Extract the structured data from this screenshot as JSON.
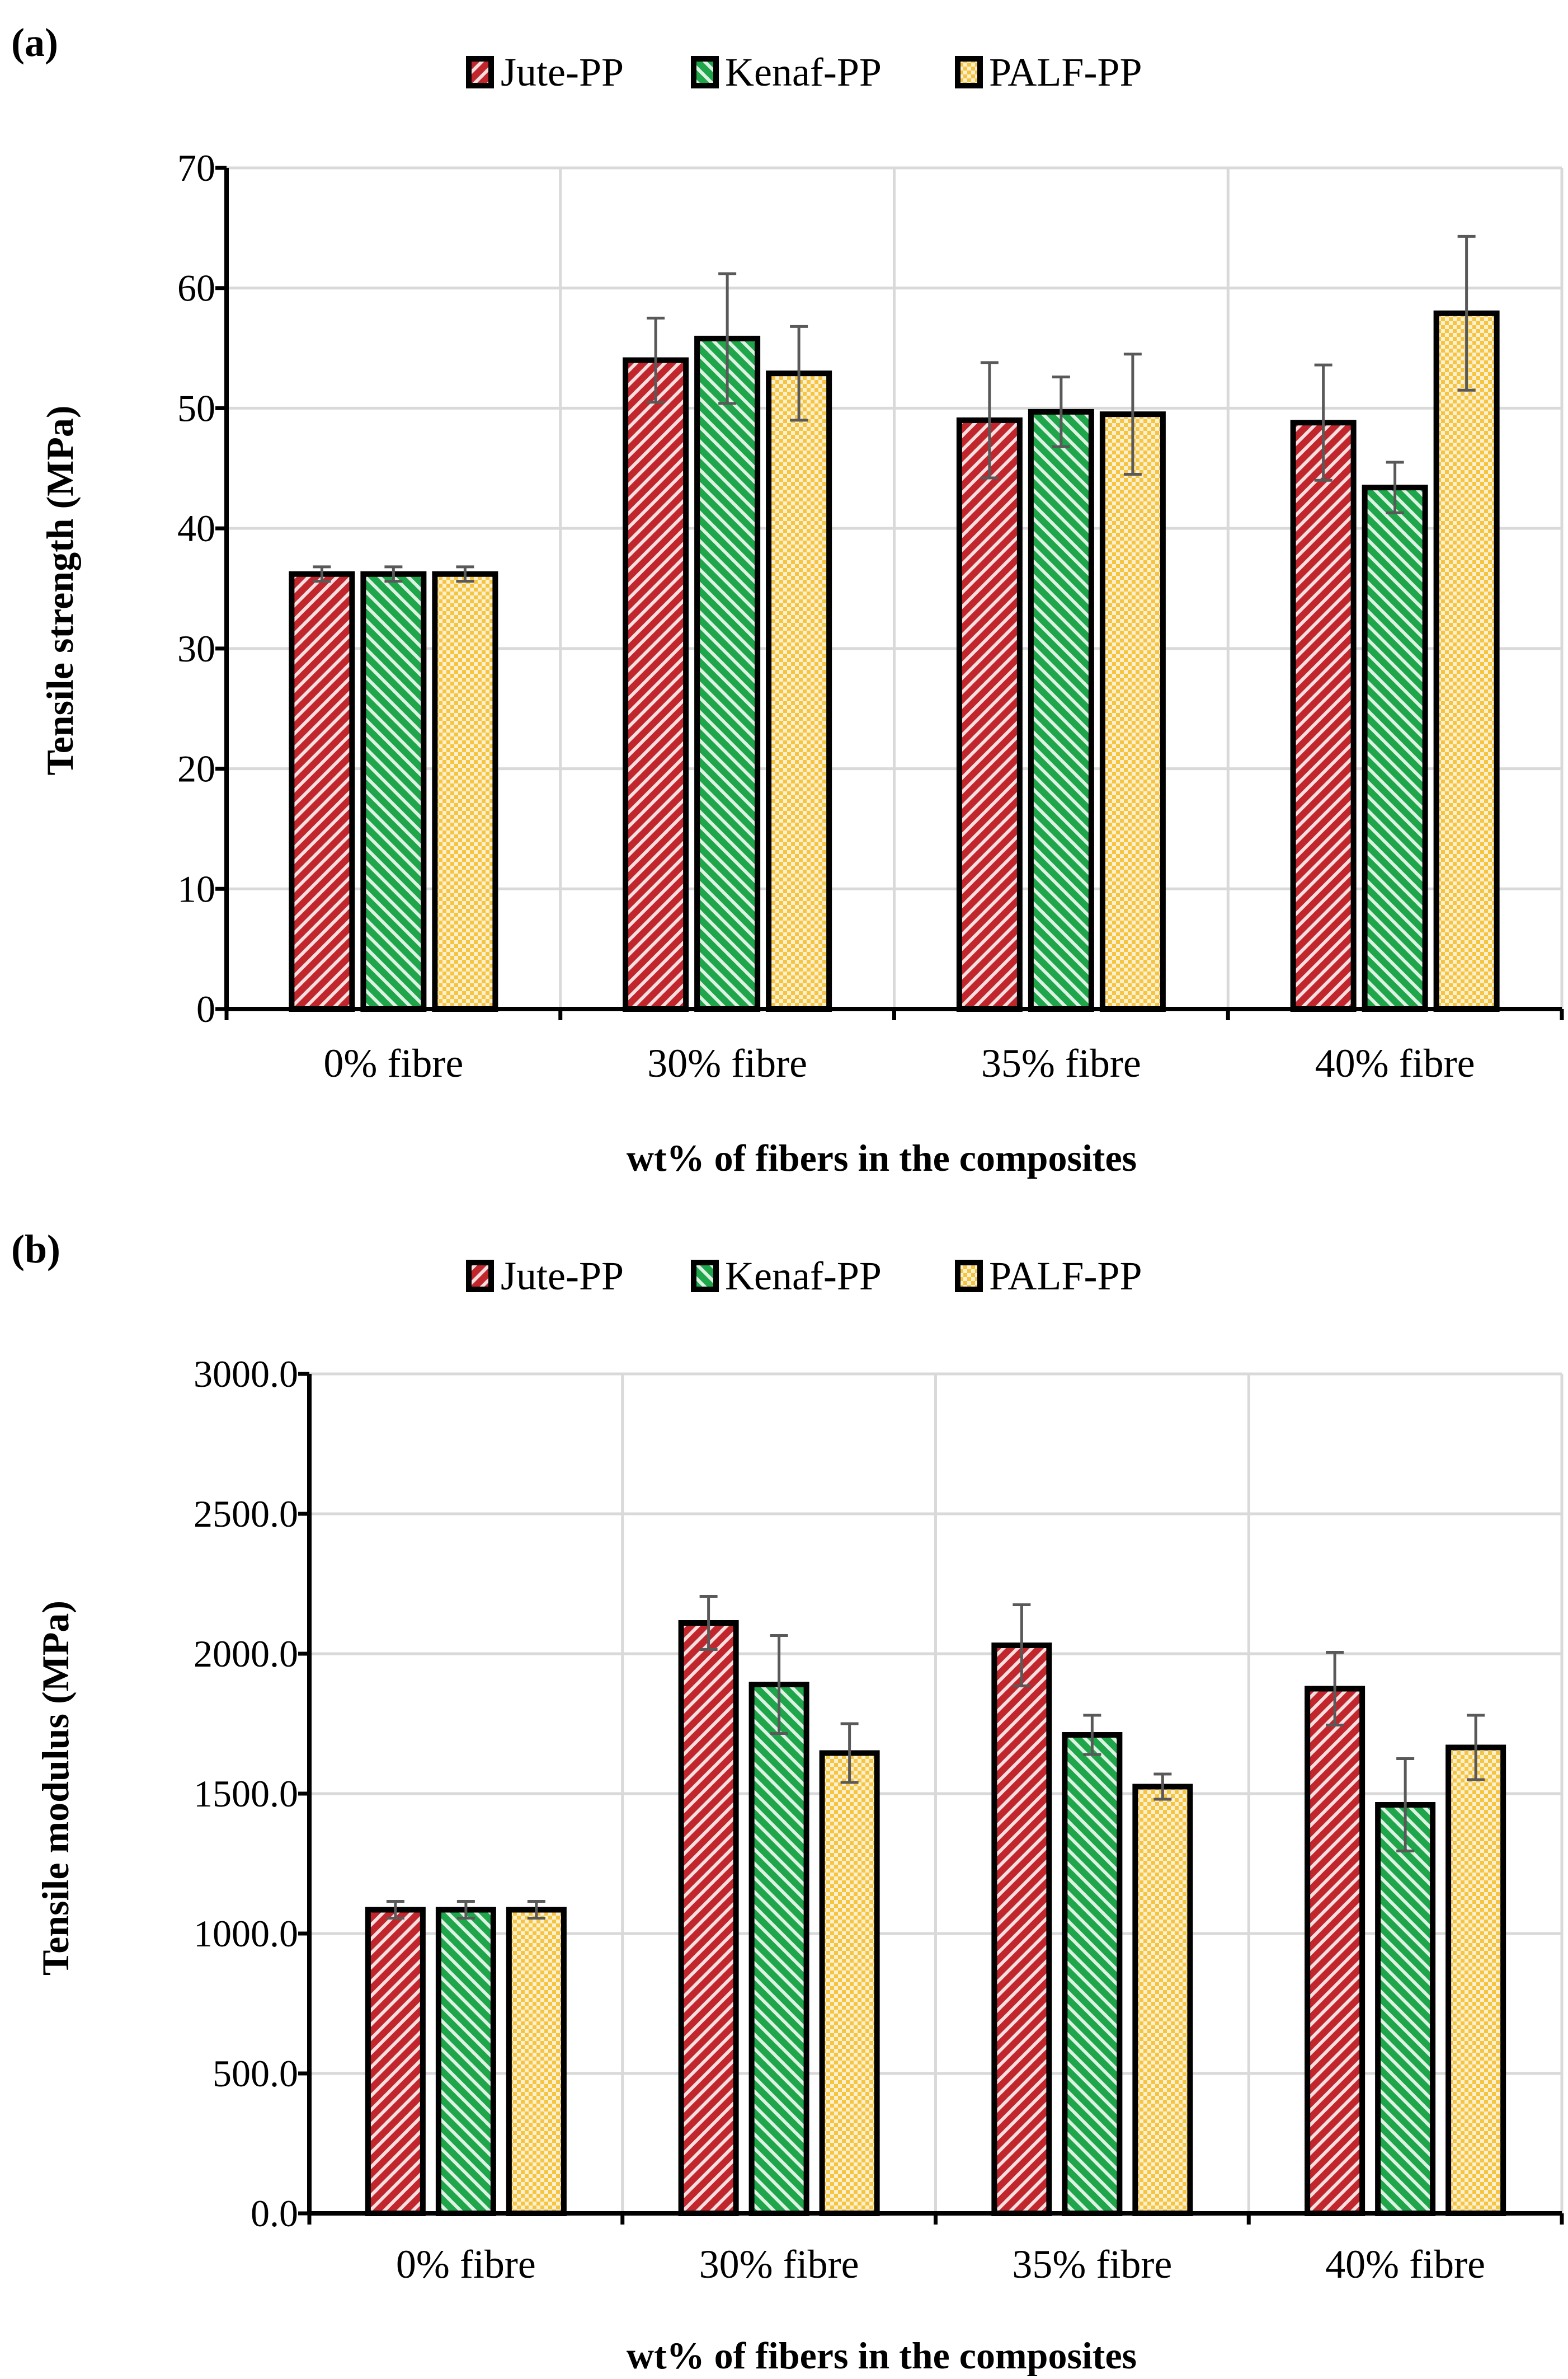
{
  "chart_data": [
    {
      "panel_label": "(a)",
      "type": "bar",
      "categories": [
        "0% fibre",
        "30% fibre",
        "35% fibre",
        "40% fibre"
      ],
      "series": [
        {
          "name": "Jute-PP",
          "values": [
            36.2,
            54.0,
            49.0,
            48.8
          ],
          "errors": [
            0.6,
            3.5,
            4.8,
            4.8
          ]
        },
        {
          "name": "Kenaf-PP",
          "values": [
            36.2,
            55.8,
            49.7,
            43.4
          ],
          "errors": [
            0.6,
            5.4,
            2.9,
            2.1
          ]
        },
        {
          "name": "PALF-PP",
          "values": [
            36.2,
            52.9,
            49.5,
            57.9
          ],
          "errors": [
            0.6,
            3.9,
            5.0,
            6.4
          ]
        }
      ],
      "xlabel": "wt% of fibers in the composites",
      "ylabel": "Tensile strength (MPa)",
      "ylim": [
        0,
        70
      ],
      "yticks": [
        0,
        10,
        20,
        30,
        40,
        50,
        60,
        70
      ],
      "ytick_labels": [
        "0",
        "10",
        "20",
        "30",
        "40",
        "50",
        "60",
        "70"
      ],
      "grid": true,
      "legend_position": "top"
    },
    {
      "panel_label": "(b)",
      "type": "bar",
      "categories": [
        "0% fibre",
        "30% fibre",
        "35% fibre",
        "40% fibre"
      ],
      "series": [
        {
          "name": "Jute-PP",
          "values": [
            1085,
            2110,
            2030,
            1875
          ],
          "errors": [
            30,
            95,
            145,
            130
          ]
        },
        {
          "name": "Kenaf-PP",
          "values": [
            1085,
            1890,
            1710,
            1460
          ],
          "errors": [
            30,
            175,
            70,
            165
          ]
        },
        {
          "name": "PALF-PP",
          "values": [
            1085,
            1645,
            1525,
            1665
          ],
          "errors": [
            30,
            105,
            45,
            115
          ]
        }
      ],
      "xlabel": "wt% of fibers in the composites",
      "ylabel": "Tensile modulus (MPa)",
      "ylim": [
        0,
        3000
      ],
      "yticks": [
        0,
        500,
        1000,
        1500,
        2000,
        2500,
        3000
      ],
      "ytick_labels": [
        "0.0",
        "500.0",
        "1000.0",
        "1500.0",
        "2000.0",
        "2500.0",
        "3000.0"
      ],
      "grid": true,
      "legend_position": "top"
    }
  ],
  "colors": {
    "Jute-PP": "#c0262c",
    "Kenaf-PP": "#1fa54a",
    "PALF-PP": "#f5c542",
    "pattern_light": "#ffffff"
  }
}
